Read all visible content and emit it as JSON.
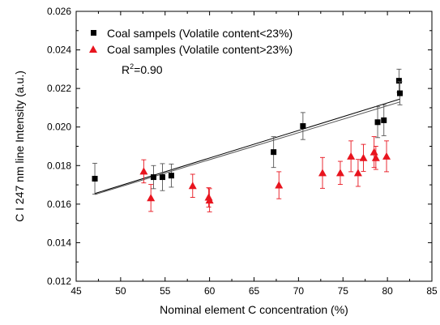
{
  "chart_data": {
    "type": "scatter",
    "xlabel": "Nominal element C concentration (%)",
    "ylabel": "C I 247 nm line Intensity (a.u.)",
    "xlim": [
      45,
      85
    ],
    "ylim": [
      0.012,
      0.026
    ],
    "x_ticks": [
      "45",
      "50",
      "55",
      "60",
      "65",
      "70",
      "75",
      "80",
      "85"
    ],
    "y_ticks": [
      "0.012",
      "0.014",
      "0.016",
      "0.018",
      "0.020",
      "0.022",
      "0.024",
      "0.026"
    ],
    "grid": false,
    "legend_position": "top-left",
    "annotation": {
      "text": "R",
      "superscript": "2",
      "suffix": "=0.90"
    },
    "series": [
      {
        "name": "Coal sampels (Volatile content<23%)",
        "marker": "square",
        "color": "#000000",
        "points": [
          {
            "x": 47.1,
            "y": 0.01732,
            "err": 0.0008
          },
          {
            "x": 53.7,
            "y": 0.0174,
            "err": 0.0006
          },
          {
            "x": 54.7,
            "y": 0.0174,
            "err": 0.0007
          },
          {
            "x": 55.7,
            "y": 0.01748,
            "err": 0.0006
          },
          {
            "x": 67.2,
            "y": 0.0187,
            "err": 0.0008
          },
          {
            "x": 70.5,
            "y": 0.02005,
            "err": 0.0007
          },
          {
            "x": 78.9,
            "y": 0.02025,
            "err": 0.0008
          },
          {
            "x": 79.6,
            "y": 0.02035,
            "err": 0.0008
          },
          {
            "x": 81.3,
            "y": 0.0224,
            "err": 0.0006
          },
          {
            "x": 81.4,
            "y": 0.02175,
            "err": 0.0006
          }
        ]
      },
      {
        "name": "Coal samples (Volatile content>23%)",
        "marker": "triangle",
        "color": "#e8141e",
        "points": [
          {
            "x": 52.6,
            "y": 0.0177,
            "err": 0.0006
          },
          {
            "x": 53.4,
            "y": 0.01632,
            "err": 0.0007
          },
          {
            "x": 58.1,
            "y": 0.01695,
            "err": 0.0006
          },
          {
            "x": 59.9,
            "y": 0.01635,
            "err": 0.0005
          },
          {
            "x": 60.0,
            "y": 0.0162,
            "err": 0.0006
          },
          {
            "x": 67.8,
            "y": 0.01698,
            "err": 0.0007
          },
          {
            "x": 72.7,
            "y": 0.01762,
            "err": 0.0008
          },
          {
            "x": 74.7,
            "y": 0.01762,
            "err": 0.0006
          },
          {
            "x": 75.9,
            "y": 0.01848,
            "err": 0.0008
          },
          {
            "x": 76.7,
            "y": 0.01762,
            "err": 0.0007
          },
          {
            "x": 77.3,
            "y": 0.0184,
            "err": 0.0007
          },
          {
            "x": 78.5,
            "y": 0.0187,
            "err": 0.0008
          },
          {
            "x": 78.7,
            "y": 0.0184,
            "err": 0.0006
          },
          {
            "x": 79.9,
            "y": 0.01848,
            "err": 0.0008
          }
        ]
      }
    ],
    "fit_lines": [
      {
        "x": [
          47.1,
          81.4
        ],
        "y": [
          0.01655,
          0.02145
        ],
        "color": "#000000"
      },
      {
        "x": [
          47.1,
          81.4
        ],
        "y": [
          0.0165,
          0.0213
        ],
        "color": "#555555"
      }
    ]
  }
}
